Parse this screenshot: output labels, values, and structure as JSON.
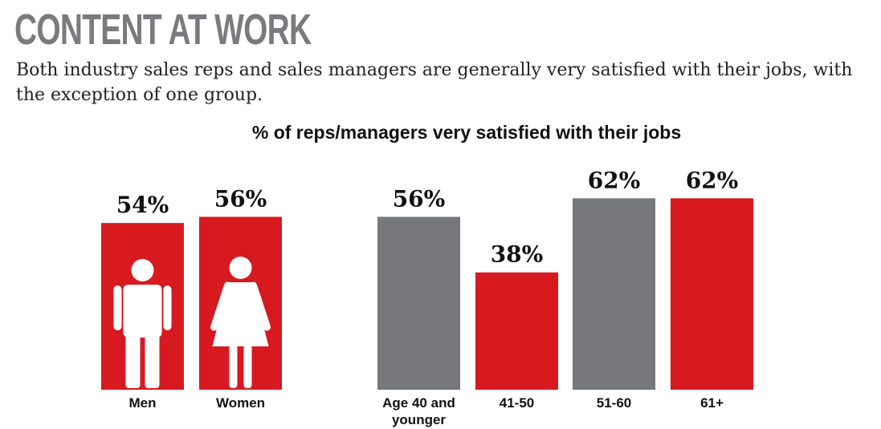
{
  "header": {
    "title": "CONTENT AT WORK",
    "subtitle": "Both industry sales reps and sales managers are generally very satisfied with their jobs, with the exception of one group."
  },
  "colors": {
    "red": "#d71920",
    "gray": "#77787b",
    "icon": "#ffffff"
  },
  "chart_data": [
    {
      "type": "bar",
      "title": "% of reps/managers very satisfied with their jobs",
      "categories": [
        "Men",
        "Women"
      ],
      "values": [
        54,
        56
      ],
      "value_labels": [
        "54%",
        "56%"
      ],
      "bar_colors": [
        "#d71920",
        "#d71920"
      ],
      "icons": [
        "man-icon",
        "woman-icon"
      ],
      "ylim": [
        0,
        62
      ]
    },
    {
      "type": "bar",
      "categories": [
        "Age 40 and younger",
        "41-50",
        "51-60",
        "61+"
      ],
      "category_lines": [
        [
          "Age 40 and",
          "younger"
        ],
        [
          "41-50"
        ],
        [
          "51-60"
        ],
        [
          "61+"
        ]
      ],
      "values": [
        56,
        38,
        62,
        62
      ],
      "value_labels": [
        "56%",
        "38%",
        "62%",
        "62%"
      ],
      "bar_colors": [
        "#77787b",
        "#d71920",
        "#77787b",
        "#d71920"
      ],
      "ylim": [
        0,
        62
      ]
    }
  ]
}
